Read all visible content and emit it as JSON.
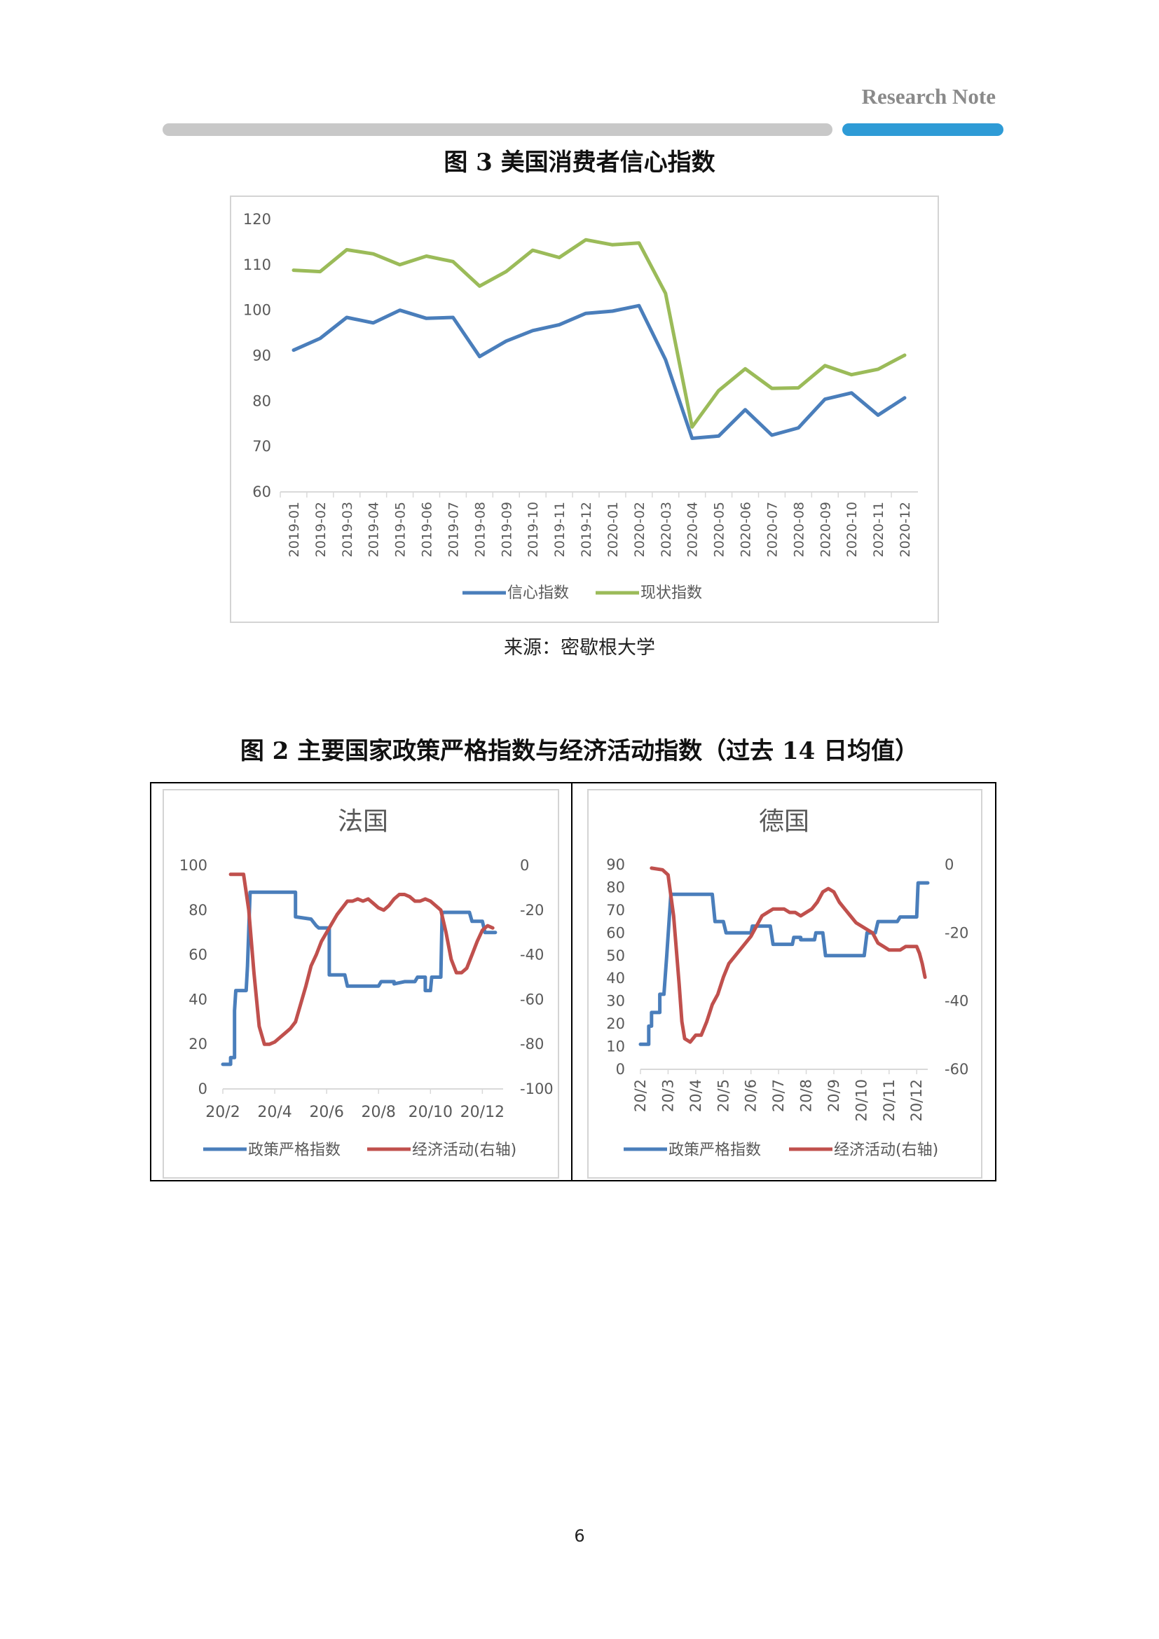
{
  "header": {
    "title": "Research Note"
  },
  "figures": {
    "fig3_title": "图 3  美国消费者信心指数",
    "fig3_source": "来源：密歇根大学",
    "fig2_title": "图 2  主要国家政策严格指数与经济活动指数（过去 14 日均值）"
  },
  "page_number": "6",
  "chart_data": [
    {
      "type": "line",
      "title": "",
      "categories": [
        "2019-01",
        "2019-02",
        "2019-03",
        "2019-04",
        "2019-05",
        "2019-06",
        "2019-07",
        "2019-08",
        "2019-09",
        "2019-10",
        "2019-11",
        "2019-12",
        "2020-01",
        "2020-02",
        "2020-03",
        "2020-04",
        "2020-05",
        "2020-06",
        "2020-07",
        "2020-08",
        "2020-09",
        "2020-10",
        "2020-11",
        "2020-12"
      ],
      "ylim": [
        60,
        120
      ],
      "yticks": [
        60,
        70,
        80,
        90,
        100,
        110,
        120
      ],
      "series": [
        {
          "name": "信心指数",
          "color": "#4a7ebb",
          "values": [
            91.2,
            93.8,
            98.4,
            97.2,
            100.0,
            98.2,
            98.4,
            89.8,
            93.2,
            95.5,
            96.8,
            99.3,
            99.8,
            101.0,
            89.1,
            71.8,
            72.3,
            78.1,
            72.5,
            74.1,
            80.4,
            81.8,
            76.9,
            80.7
          ]
        },
        {
          "name": "现状指数",
          "color": "#9bbb59",
          "values": [
            108.8,
            108.5,
            113.3,
            112.4,
            110.0,
            111.9,
            110.7,
            105.3,
            108.5,
            113.2,
            111.6,
            115.5,
            114.4,
            114.8,
            103.7,
            74.3,
            82.3,
            87.1,
            82.8,
            82.9,
            87.8,
            85.8,
            87.0,
            90.1
          ]
        }
      ],
      "grid": false,
      "legend": "bottom"
    },
    {
      "type": "line",
      "title": "法国",
      "xticks": [
        "20/2",
        "20/4",
        "20/6",
        "20/8",
        "20/10",
        "20/12"
      ],
      "x_range_months": [
        2.0,
        12.8
      ],
      "y_left": {
        "ylim": [
          0,
          100
        ],
        "ticks": [
          0,
          20,
          40,
          60,
          80,
          100
        ]
      },
      "y_right": {
        "ylim": [
          -100,
          0
        ],
        "ticks": [
          -100,
          -80,
          -60,
          -40,
          -20,
          0
        ]
      },
      "series": [
        {
          "name": "政策严格指数",
          "axis": "left",
          "color": "#4a7ebb",
          "step": true,
          "points": [
            [
              2.0,
              11
            ],
            [
              2.3,
              11
            ],
            [
              2.3,
              14
            ],
            [
              2.45,
              14
            ],
            [
              2.45,
              35
            ],
            [
              2.5,
              44
            ],
            [
              2.9,
              44
            ],
            [
              2.95,
              55
            ],
            [
              3.05,
              88
            ],
            [
              4.8,
              88
            ],
            [
              4.8,
              77
            ],
            [
              5.4,
              76
            ],
            [
              5.6,
              73
            ],
            [
              5.7,
              72
            ],
            [
              6.1,
              72
            ],
            [
              6.1,
              51
            ],
            [
              6.7,
              51
            ],
            [
              6.8,
              46
            ],
            [
              8.0,
              46
            ],
            [
              8.1,
              48
            ],
            [
              8.6,
              48
            ],
            [
              8.6,
              47
            ],
            [
              9.0,
              48
            ],
            [
              9.4,
              48
            ],
            [
              9.5,
              50
            ],
            [
              9.8,
              50
            ],
            [
              9.8,
              44
            ],
            [
              10.0,
              44
            ],
            [
              10.05,
              50
            ],
            [
              10.4,
              50
            ],
            [
              10.45,
              79
            ],
            [
              11.5,
              79
            ],
            [
              11.6,
              75
            ],
            [
              12.0,
              75
            ],
            [
              12.1,
              70
            ],
            [
              12.5,
              70
            ]
          ]
        },
        {
          "name": "经济活动(右轴)",
          "axis": "right",
          "color": "#c0504d",
          "points": [
            [
              2.3,
              -4
            ],
            [
              2.6,
              -4
            ],
            [
              2.8,
              -4
            ],
            [
              3.0,
              -20
            ],
            [
              3.2,
              -48
            ],
            [
              3.4,
              -72
            ],
            [
              3.6,
              -80
            ],
            [
              3.8,
              -80
            ],
            [
              4.0,
              -79
            ],
            [
              4.2,
              -77
            ],
            [
              4.4,
              -75
            ],
            [
              4.6,
              -73
            ],
            [
              4.8,
              -70
            ],
            [
              5.0,
              -62
            ],
            [
              5.2,
              -54
            ],
            [
              5.4,
              -45
            ],
            [
              5.6,
              -40
            ],
            [
              5.8,
              -34
            ],
            [
              6.0,
              -30
            ],
            [
              6.2,
              -26
            ],
            [
              6.4,
              -22
            ],
            [
              6.6,
              -19
            ],
            [
              6.8,
              -16
            ],
            [
              7.0,
              -16
            ],
            [
              7.2,
              -15
            ],
            [
              7.4,
              -16
            ],
            [
              7.6,
              -15
            ],
            [
              7.8,
              -17
            ],
            [
              8.0,
              -19
            ],
            [
              8.2,
              -20
            ],
            [
              8.4,
              -18
            ],
            [
              8.6,
              -15
            ],
            [
              8.8,
              -13
            ],
            [
              9.0,
              -13
            ],
            [
              9.2,
              -14
            ],
            [
              9.4,
              -16
            ],
            [
              9.6,
              -16
            ],
            [
              9.8,
              -15
            ],
            [
              10.0,
              -16
            ],
            [
              10.2,
              -18
            ],
            [
              10.4,
              -20
            ],
            [
              10.6,
              -30
            ],
            [
              10.8,
              -42
            ],
            [
              11.0,
              -48
            ],
            [
              11.2,
              -48
            ],
            [
              11.4,
              -46
            ],
            [
              11.6,
              -40
            ],
            [
              11.8,
              -34
            ],
            [
              12.0,
              -29
            ],
            [
              12.2,
              -27
            ],
            [
              12.4,
              -28
            ]
          ]
        }
      ],
      "legend": "bottom"
    },
    {
      "type": "line",
      "title": "德国",
      "xticks": [
        "20/2",
        "20/3",
        "20/4",
        "20/5",
        "20/6",
        "20/7",
        "20/8",
        "20/9",
        "20/10",
        "20/11",
        "20/12"
      ],
      "x_range_months": [
        2.0,
        12.4
      ],
      "y_left": {
        "ylim": [
          0,
          90
        ],
        "ticks": [
          0,
          10,
          20,
          30,
          40,
          50,
          60,
          70,
          80,
          90
        ]
      },
      "y_right": {
        "ylim": [
          -60,
          0
        ],
        "ticks": [
          -60,
          -40,
          -20,
          0
        ]
      },
      "series": [
        {
          "name": "政策严格指数",
          "axis": "left",
          "color": "#4a7ebb",
          "step": true,
          "points": [
            [
              2.0,
              11
            ],
            [
              2.3,
              11
            ],
            [
              2.3,
              19
            ],
            [
              2.4,
              19
            ],
            [
              2.4,
              25
            ],
            [
              2.7,
              25
            ],
            [
              2.7,
              33
            ],
            [
              2.85,
              33
            ],
            [
              2.95,
              50
            ],
            [
              3.1,
              77
            ],
            [
              4.6,
              77
            ],
            [
              4.7,
              65
            ],
            [
              5.0,
              65
            ],
            [
              5.1,
              60
            ],
            [
              6.0,
              60
            ],
            [
              6.05,
              63
            ],
            [
              6.7,
              63
            ],
            [
              6.8,
              55
            ],
            [
              7.5,
              55
            ],
            [
              7.55,
              58
            ],
            [
              7.8,
              58
            ],
            [
              7.8,
              57
            ],
            [
              8.3,
              57
            ],
            [
              8.35,
              60
            ],
            [
              8.6,
              60
            ],
            [
              8.7,
              50
            ],
            [
              10.1,
              50
            ],
            [
              10.2,
              60
            ],
            [
              10.5,
              60
            ],
            [
              10.6,
              65
            ],
            [
              11.3,
              65
            ],
            [
              11.4,
              67
            ],
            [
              12.0,
              67
            ],
            [
              12.05,
              82
            ],
            [
              12.4,
              82
            ]
          ]
        },
        {
          "name": "经济活动(右轴)",
          "axis": "right",
          "color": "#c0504d",
          "points": [
            [
              2.4,
              -1
            ],
            [
              2.8,
              -1.5
            ],
            [
              3.0,
              -3
            ],
            [
              3.2,
              -15
            ],
            [
              3.4,
              -35
            ],
            [
              3.5,
              -46
            ],
            [
              3.6,
              -51
            ],
            [
              3.8,
              -52
            ],
            [
              4.0,
              -50
            ],
            [
              4.2,
              -50
            ],
            [
              4.4,
              -46
            ],
            [
              4.6,
              -41
            ],
            [
              4.8,
              -38
            ],
            [
              5.0,
              -33
            ],
            [
              5.2,
              -29
            ],
            [
              5.4,
              -27
            ],
            [
              5.6,
              -25
            ],
            [
              5.8,
              -23
            ],
            [
              6.0,
              -21
            ],
            [
              6.2,
              -18
            ],
            [
              6.4,
              -15
            ],
            [
              6.6,
              -14
            ],
            [
              6.8,
              -13
            ],
            [
              7.0,
              -13
            ],
            [
              7.2,
              -13
            ],
            [
              7.4,
              -14
            ],
            [
              7.6,
              -14
            ],
            [
              7.8,
              -15
            ],
            [
              8.0,
              -14
            ],
            [
              8.2,
              -13
            ],
            [
              8.4,
              -11
            ],
            [
              8.6,
              -8
            ],
            [
              8.8,
              -7
            ],
            [
              9.0,
              -8
            ],
            [
              9.2,
              -11
            ],
            [
              9.4,
              -13
            ],
            [
              9.6,
              -15
            ],
            [
              9.8,
              -17
            ],
            [
              10.0,
              -18
            ],
            [
              10.2,
              -19
            ],
            [
              10.4,
              -20
            ],
            [
              10.6,
              -23
            ],
            [
              10.8,
              -24
            ],
            [
              11.0,
              -25
            ],
            [
              11.2,
              -25
            ],
            [
              11.4,
              -25
            ],
            [
              11.6,
              -24
            ],
            [
              11.8,
              -24
            ],
            [
              12.0,
              -24
            ],
            [
              12.1,
              -26
            ],
            [
              12.2,
              -29
            ],
            [
              12.3,
              -33
            ]
          ]
        }
      ],
      "legend": "bottom"
    }
  ]
}
